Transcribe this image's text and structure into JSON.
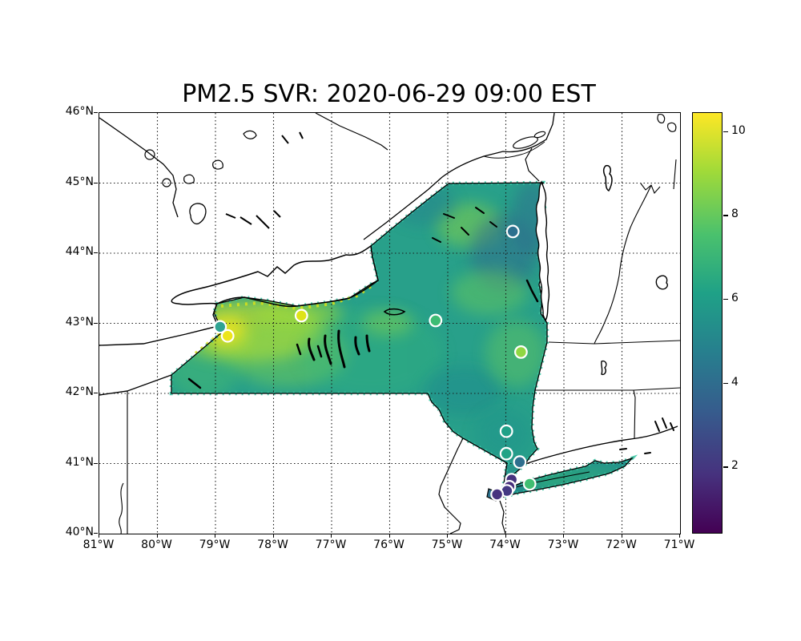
{
  "figure": {
    "title": "PM2.5 SVR: 2020-06-29 09:00 EST",
    "background": "#ffffff"
  },
  "chart_data": {
    "type": "heatmap",
    "title": "PM2.5 SVR: 2020-06-29 09:00 EST",
    "subtitle": "",
    "region": "New York State PM2.5 prediction surface with monitoring-station overlay",
    "projection": "longitude/latitude",
    "x_axis": {
      "label": "",
      "tick_labels": [
        "81°W",
        "80°W",
        "79°W",
        "78°W",
        "77°W",
        "76°W",
        "75°W",
        "74°W",
        "73°W",
        "72°W",
        "71°W"
      ],
      "tick_values": [
        -81,
        -80,
        -79,
        -78,
        -77,
        -76,
        -75,
        -74,
        -73,
        -72,
        -71
      ],
      "range": [
        -81,
        -71
      ]
    },
    "y_axis": {
      "label": "",
      "tick_labels": [
        "46°N",
        "45°N",
        "44°N",
        "43°N",
        "42°N",
        "41°N",
        "40°N"
      ],
      "tick_values": [
        46,
        45,
        44,
        43,
        42,
        41,
        40
      ],
      "range": [
        40,
        46
      ]
    },
    "grid": {
      "visible": true,
      "style": "dotted",
      "color": "#1a1a1a"
    },
    "colorbar": {
      "colormap": "viridis",
      "vmin": 0.4,
      "vmax": 10.45,
      "tick_values": [
        2,
        4,
        6,
        8,
        10
      ],
      "tick_labels": [
        "2",
        "4",
        "6",
        "8",
        "10"
      ],
      "stops": [
        {
          "pos": 0.0,
          "color": "#440154"
        },
        {
          "pos": 0.14,
          "color": "#46327e"
        },
        {
          "pos": 0.29,
          "color": "#365c8d"
        },
        {
          "pos": 0.43,
          "color": "#277f8e"
        },
        {
          "pos": 0.57,
          "color": "#1fa187"
        },
        {
          "pos": 0.71,
          "color": "#4ac16d"
        },
        {
          "pos": 0.86,
          "color": "#a0da39"
        },
        {
          "pos": 1.0,
          "color": "#fde725"
        }
      ]
    },
    "surface": {
      "description": "viridis-shaded PM2.5 field over NY: yellow-green maximum (~8-10) in western NY near Buffalo/Rochester, mid teal-green (~5-6) across central NY, darker blue-teal (~4) over the Adirondacks and lower Hudson, green (~7) near Albany and the St. Lawrence valley",
      "approx_value_range": [
        0.5,
        10.5
      ]
    },
    "stations": [
      {
        "lon": -78.79,
        "lat": 42.82,
        "value": 10.0,
        "color": "#ece51b"
      },
      {
        "lon": -78.92,
        "lat": 42.95,
        "value": 5.6,
        "color": "#2fa393"
      },
      {
        "lon": -77.52,
        "lat": 43.11,
        "value": 9.3,
        "color": "#dde318"
      },
      {
        "lon": -75.21,
        "lat": 43.04,
        "value": 6.2,
        "color": "#3dbc74"
      },
      {
        "lon": -73.88,
        "lat": 44.31,
        "value": 4.4,
        "color": "#2d708e"
      },
      {
        "lon": -73.74,
        "lat": 42.59,
        "value": 7.9,
        "color": "#90d743"
      },
      {
        "lon": -73.99,
        "lat": 41.46,
        "value": 5.4,
        "color": "#1fa188"
      },
      {
        "lon": -73.99,
        "lat": 41.14,
        "value": 5.3,
        "color": "#20a386"
      },
      {
        "lon": -73.76,
        "lat": 41.02,
        "value": 3.9,
        "color": "#2e6f8e"
      },
      {
        "lon": -73.59,
        "lat": 40.71,
        "value": 6.4,
        "color": "#40bd72"
      },
      {
        "lon": -73.9,
        "lat": 40.77,
        "value": 1.8,
        "color": "#46327e"
      },
      {
        "lon": -73.94,
        "lat": 40.67,
        "value": 1.7,
        "color": "#472f7d"
      },
      {
        "lon": -73.98,
        "lat": 40.61,
        "value": 2.2,
        "color": "#443983"
      },
      {
        "lon": -74.15,
        "lat": 40.56,
        "value": 1.8,
        "color": "#46327e"
      }
    ]
  }
}
